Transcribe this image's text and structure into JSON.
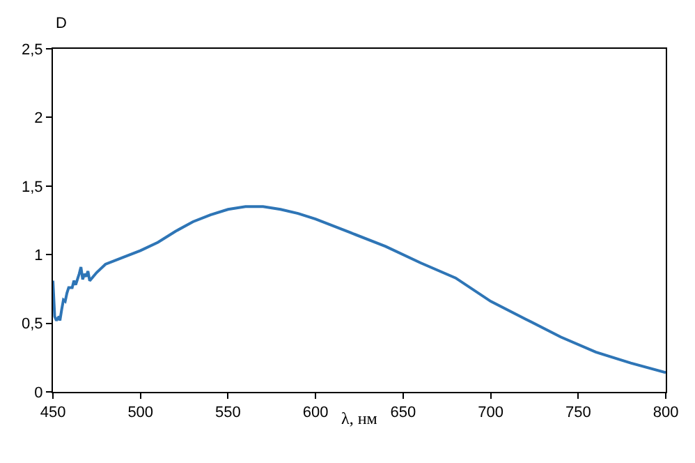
{
  "chart_data": {
    "type": "line",
    "xlabel": "λ, нм",
    "ylabel": "D",
    "x": [
      450,
      451,
      452,
      453.5,
      454,
      455,
      456,
      457,
      458,
      459,
      461,
      462,
      463,
      464,
      465,
      466,
      467,
      468,
      469,
      470,
      471,
      473,
      475,
      480,
      490,
      500,
      510,
      520,
      530,
      540,
      550,
      560,
      570,
      580,
      590,
      600,
      620,
      640,
      660,
      680,
      700,
      720,
      740,
      760,
      780,
      800
    ],
    "series": [
      {
        "color": "#2e75b6",
        "values": [
          0.81,
          0.55,
          0.52,
          0.55,
          0.52,
          0.6,
          0.67,
          0.66,
          0.72,
          0.76,
          0.76,
          0.81,
          0.78,
          0.82,
          0.86,
          0.91,
          0.82,
          0.86,
          0.84,
          0.88,
          0.81,
          0.84,
          0.87,
          0.93,
          0.98,
          1.03,
          1.09,
          1.17,
          1.24,
          1.29,
          1.33,
          1.35,
          1.35,
          1.33,
          1.3,
          1.26,
          1.16,
          1.06,
          0.94,
          0.83,
          0.66,
          0.53,
          0.4,
          0.29,
          0.21,
          0.14
        ]
      }
    ],
    "xlim": [
      450,
      800
    ],
    "xticks": [
      450,
      500,
      550,
      600,
      650,
      700,
      750,
      800
    ],
    "ylim": [
      0,
      2.5
    ],
    "yticks": [
      0,
      {
        "value": 0.5,
        "label": "0,5"
      },
      1,
      {
        "value": 1.5,
        "label": "1,5"
      },
      2,
      {
        "value": 2.5,
        "label": "2,5"
      }
    ],
    "marker": "none",
    "line_style": "solid"
  }
}
